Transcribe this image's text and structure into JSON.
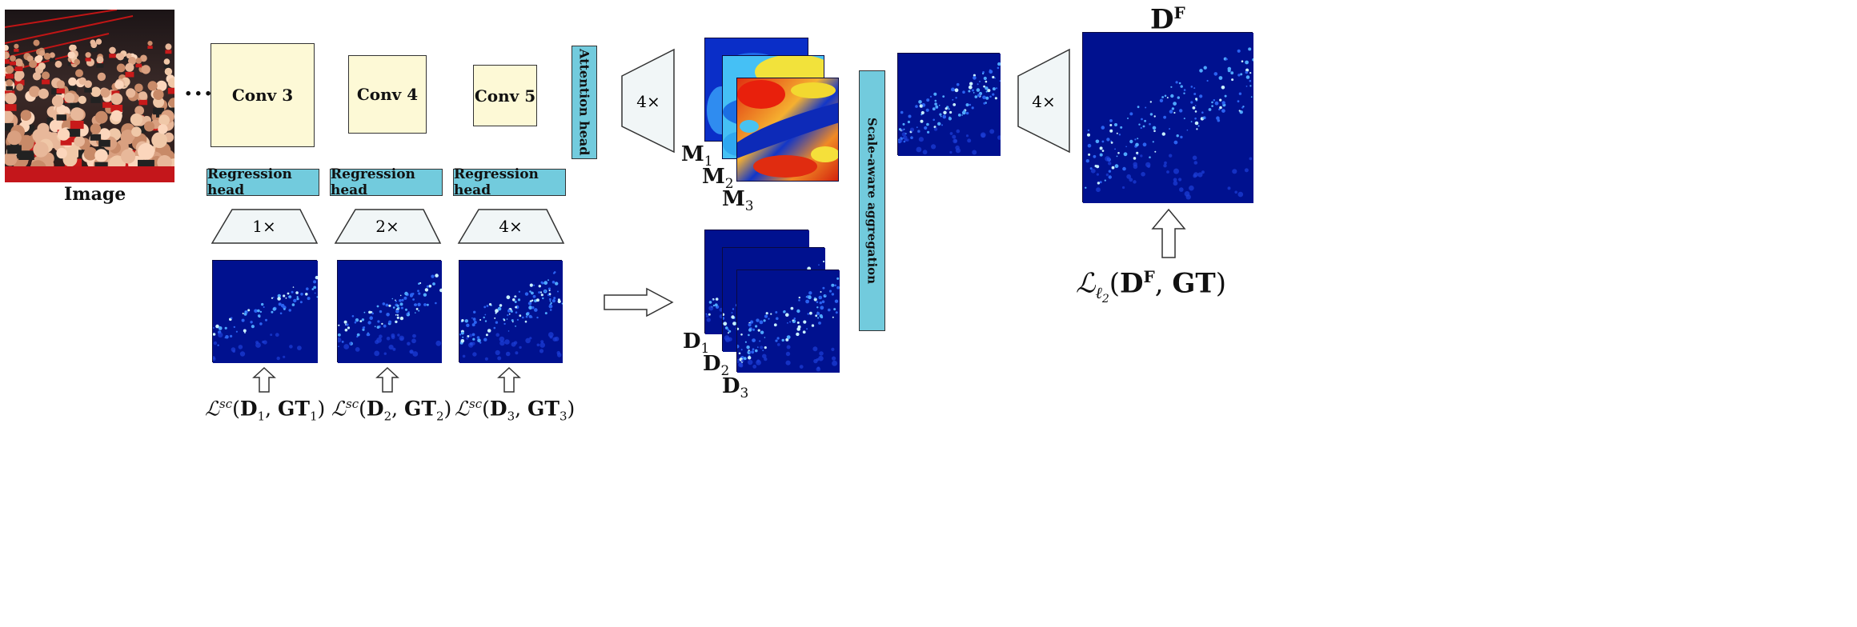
{
  "image_label": "Image",
  "ellipsis": "...",
  "conv": [
    "Conv 3",
    "Conv 4",
    "Conv 5"
  ],
  "regression_head": [
    "Regression head",
    "Regression head",
    "Regression head"
  ],
  "upsample": [
    "1×",
    "2×",
    "4×"
  ],
  "attention_head": "Attention head",
  "attention_upsample": "4×",
  "final_upsample": "4×",
  "aggregation": "Scale-aware aggregation",
  "m_labels": [
    {
      "base": "M",
      "sub": "1"
    },
    {
      "base": "M",
      "sub": "2"
    },
    {
      "base": "M",
      "sub": "3"
    }
  ],
  "d_labels": [
    {
      "base": "D",
      "sub": "1"
    },
    {
      "base": "D",
      "sub": "2"
    },
    {
      "base": "D",
      "sub": "3"
    }
  ],
  "losses": [
    {
      "sym": "ℒ",
      "sup": "sc",
      "open": "(",
      "d": "D",
      "dsub": "1",
      "comma": ", ",
      "gt": "GT",
      "gtsub": "1",
      "close": ")"
    },
    {
      "sym": "ℒ",
      "sup": "sc",
      "open": "(",
      "d": "D",
      "dsub": "2",
      "comma": ", ",
      "gt": "GT",
      "gtsub": "2",
      "close": ")"
    },
    {
      "sym": "ℒ",
      "sup": "sc",
      "open": "(",
      "d": "D",
      "dsub": "3",
      "comma": ", ",
      "gt": "GT",
      "gtsub": "3",
      "close": ")"
    }
  ],
  "final_title": {
    "base": "D",
    "sup": "F"
  },
  "final_loss": {
    "sym": "ℒ",
    "sub": "ℓ",
    "subsub": "2",
    "open": "(",
    "d": "D",
    "dsup": "F",
    "comma": ", ",
    "gt": "GT",
    "close": ")"
  },
  "colors": {
    "conv_fill": "#fdf9d6",
    "head_fill": "#72cbdd",
    "trap_fill": "#f1f6f7",
    "density_bg": "#00118f"
  }
}
